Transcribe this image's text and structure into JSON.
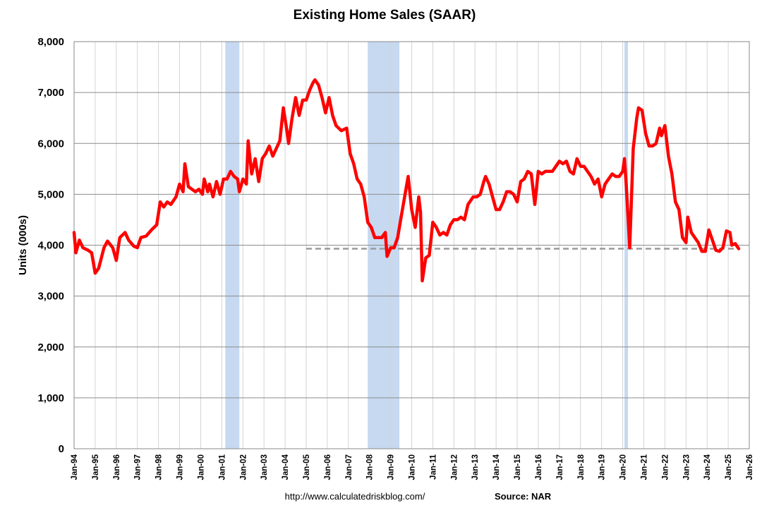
{
  "chart_data": {
    "type": "line",
    "title": "Existing Home Sales (SAAR)",
    "ylabel": "Units (000s)",
    "xlabel": "",
    "ylim": [
      0,
      8000
    ],
    "y_ticks": [
      0,
      1000,
      2000,
      3000,
      4000,
      5000,
      6000,
      7000,
      8000
    ],
    "y_tick_labels": [
      "0",
      "1,000",
      "2,000",
      "3,000",
      "4,000",
      "5,000",
      "6,000",
      "7,000",
      "8,000"
    ],
    "x_tick_labels": [
      "Jan-94",
      "Jan-95",
      "Jan-96",
      "Jan-97",
      "Jan-98",
      "Jan-99",
      "Jan-00",
      "Jan-01",
      "Jan-02",
      "Jan-03",
      "Jan-04",
      "Jan-05",
      "Jan-06",
      "Jan-07",
      "Jan-08",
      "Jan-09",
      "Jan-10",
      "Jan-11",
      "Jan-12",
      "Jan-13",
      "Jan-14",
      "Jan-15",
      "Jan-16",
      "Jan-17",
      "Jan-18",
      "Jan-19",
      "Jan-20",
      "Jan-21",
      "Jan-22",
      "Jan-23",
      "Jan-24",
      "Jan-25",
      "Jan-26"
    ],
    "grid": true,
    "recessions": [
      [
        "2001-03",
        "2001-11"
      ],
      [
        "2007-12",
        "2009-06"
      ],
      [
        "2020-02",
        "2020-04"
      ]
    ],
    "reference_line": {
      "value": 3930,
      "from": "2005-01",
      "to": "2025-07",
      "style": "dashed"
    },
    "series": [
      {
        "color": "#ff0000",
        "points": [
          [
            "1994-01",
            4250
          ],
          [
            "1994-02",
            3850
          ],
          [
            "1994-04",
            4100
          ],
          [
            "1994-06",
            3950
          ],
          [
            "1994-09",
            3900
          ],
          [
            "1994-11",
            3850
          ],
          [
            "1995-01",
            3450
          ],
          [
            "1995-03",
            3550
          ],
          [
            "1995-06",
            3950
          ],
          [
            "1995-08",
            4080
          ],
          [
            "1995-11",
            3950
          ],
          [
            "1996-01",
            3700
          ],
          [
            "1996-03",
            4150
          ],
          [
            "1996-06",
            4250
          ],
          [
            "1996-08",
            4100
          ],
          [
            "1996-11",
            3980
          ],
          [
            "1997-01",
            3950
          ],
          [
            "1997-03",
            4150
          ],
          [
            "1997-06",
            4180
          ],
          [
            "1997-09",
            4300
          ],
          [
            "1997-12",
            4400
          ],
          [
            "1998-02",
            4850
          ],
          [
            "1998-04",
            4750
          ],
          [
            "1998-06",
            4850
          ],
          [
            "1998-08",
            4800
          ],
          [
            "1998-11",
            4950
          ],
          [
            "1999-01",
            5200
          ],
          [
            "1999-03",
            5050
          ],
          [
            "1999-04",
            5600
          ],
          [
            "1999-06",
            5150
          ],
          [
            "1999-08",
            5100
          ],
          [
            "1999-10",
            5050
          ],
          [
            "1999-12",
            5100
          ],
          [
            "2000-02",
            5000
          ],
          [
            "2000-03",
            5300
          ],
          [
            "2000-05",
            5050
          ],
          [
            "2000-06",
            5200
          ],
          [
            "2000-08",
            4950
          ],
          [
            "2000-10",
            5250
          ],
          [
            "2000-12",
            5000
          ],
          [
            "2001-02",
            5300
          ],
          [
            "2001-04",
            5300
          ],
          [
            "2001-06",
            5450
          ],
          [
            "2001-08",
            5350
          ],
          [
            "2001-10",
            5300
          ],
          [
            "2001-11",
            5050
          ],
          [
            "2002-01",
            5300
          ],
          [
            "2002-03",
            5200
          ],
          [
            "2002-04",
            6050
          ],
          [
            "2002-06",
            5400
          ],
          [
            "2002-08",
            5700
          ],
          [
            "2002-10",
            5250
          ],
          [
            "2002-12",
            5700
          ],
          [
            "2003-02",
            5800
          ],
          [
            "2003-04",
            5950
          ],
          [
            "2003-06",
            5750
          ],
          [
            "2003-08",
            5900
          ],
          [
            "2003-10",
            6050
          ],
          [
            "2003-12",
            6700
          ],
          [
            "2004-02",
            6250
          ],
          [
            "2004-03",
            6000
          ],
          [
            "2004-05",
            6500
          ],
          [
            "2004-07",
            6900
          ],
          [
            "2004-09",
            6550
          ],
          [
            "2004-11",
            6850
          ],
          [
            "2005-01",
            6850
          ],
          [
            "2005-03",
            7050
          ],
          [
            "2005-05",
            7200
          ],
          [
            "2005-06",
            7250
          ],
          [
            "2005-08",
            7150
          ],
          [
            "2005-10",
            6900
          ],
          [
            "2005-12",
            6600
          ],
          [
            "2006-02",
            6900
          ],
          [
            "2006-04",
            6550
          ],
          [
            "2006-06",
            6350
          ],
          [
            "2006-09",
            6250
          ],
          [
            "2006-12",
            6300
          ],
          [
            "2007-02",
            5800
          ],
          [
            "2007-04",
            5600
          ],
          [
            "2007-06",
            5300
          ],
          [
            "2007-08",
            5200
          ],
          [
            "2007-10",
            4950
          ],
          [
            "2007-12",
            4450
          ],
          [
            "2008-02",
            4350
          ],
          [
            "2008-04",
            4150
          ],
          [
            "2008-06",
            4150
          ],
          [
            "2008-08",
            4150
          ],
          [
            "2008-10",
            4250
          ],
          [
            "2008-11",
            3780
          ],
          [
            "2009-01",
            3950
          ],
          [
            "2009-03",
            3950
          ],
          [
            "2009-05",
            4150
          ],
          [
            "2009-07",
            4550
          ],
          [
            "2009-09",
            4950
          ],
          [
            "2009-11",
            5350
          ],
          [
            "2010-01",
            4700
          ],
          [
            "2010-03",
            4350
          ],
          [
            "2010-05",
            4950
          ],
          [
            "2010-06",
            4650
          ],
          [
            "2010-07",
            3300
          ],
          [
            "2010-09",
            3750
          ],
          [
            "2010-11",
            3800
          ],
          [
            "2011-01",
            4450
          ],
          [
            "2011-03",
            4350
          ],
          [
            "2011-05",
            4200
          ],
          [
            "2011-07",
            4250
          ],
          [
            "2011-09",
            4200
          ],
          [
            "2011-11",
            4400
          ],
          [
            "2012-01",
            4500
          ],
          [
            "2012-03",
            4500
          ],
          [
            "2012-05",
            4550
          ],
          [
            "2012-07",
            4500
          ],
          [
            "2012-09",
            4800
          ],
          [
            "2012-12",
            4950
          ],
          [
            "2013-02",
            4950
          ],
          [
            "2013-04",
            5000
          ],
          [
            "2013-06",
            5250
          ],
          [
            "2013-07",
            5350
          ],
          [
            "2013-09",
            5200
          ],
          [
            "2013-11",
            4950
          ],
          [
            "2014-01",
            4700
          ],
          [
            "2014-03",
            4700
          ],
          [
            "2014-05",
            4850
          ],
          [
            "2014-07",
            5050
          ],
          [
            "2014-09",
            5050
          ],
          [
            "2014-11",
            5000
          ],
          [
            "2015-01",
            4850
          ],
          [
            "2015-03",
            5250
          ],
          [
            "2015-05",
            5300
          ],
          [
            "2015-07",
            5450
          ],
          [
            "2015-09",
            5400
          ],
          [
            "2015-11",
            4800
          ],
          [
            "2016-01",
            5450
          ],
          [
            "2016-03",
            5400
          ],
          [
            "2016-05",
            5450
          ],
          [
            "2016-07",
            5450
          ],
          [
            "2016-09",
            5450
          ],
          [
            "2016-11",
            5550
          ],
          [
            "2017-01",
            5650
          ],
          [
            "2017-03",
            5600
          ],
          [
            "2017-05",
            5650
          ],
          [
            "2017-07",
            5450
          ],
          [
            "2017-09",
            5400
          ],
          [
            "2017-11",
            5700
          ],
          [
            "2018-01",
            5550
          ],
          [
            "2018-03",
            5550
          ],
          [
            "2018-05",
            5450
          ],
          [
            "2018-07",
            5350
          ],
          [
            "2018-09",
            5200
          ],
          [
            "2018-11",
            5300
          ],
          [
            "2019-01",
            4950
          ],
          [
            "2019-03",
            5200
          ],
          [
            "2019-05",
            5300
          ],
          [
            "2019-07",
            5400
          ],
          [
            "2019-09",
            5350
          ],
          [
            "2019-11",
            5350
          ],
          [
            "2020-01",
            5450
          ],
          [
            "2020-02",
            5700
          ],
          [
            "2020-03",
            5200
          ],
          [
            "2020-05",
            3950
          ],
          [
            "2020-07",
            5900
          ],
          [
            "2020-09",
            6500
          ],
          [
            "2020-10",
            6700
          ],
          [
            "2020-12",
            6650
          ],
          [
            "2021-02",
            6200
          ],
          [
            "2021-04",
            5950
          ],
          [
            "2021-06",
            5950
          ],
          [
            "2021-08",
            6000
          ],
          [
            "2021-10",
            6300
          ],
          [
            "2021-11",
            6150
          ],
          [
            "2022-01",
            6350
          ],
          [
            "2022-03",
            5750
          ],
          [
            "2022-05",
            5400
          ],
          [
            "2022-07",
            4850
          ],
          [
            "2022-09",
            4700
          ],
          [
            "2022-11",
            4150
          ],
          [
            "2023-01",
            4050
          ],
          [
            "2023-02",
            4550
          ],
          [
            "2023-04",
            4250
          ],
          [
            "2023-06",
            4150
          ],
          [
            "2023-08",
            4050
          ],
          [
            "2023-10",
            3880
          ],
          [
            "2023-12",
            3880
          ],
          [
            "2024-02",
            4300
          ],
          [
            "2024-04",
            4100
          ],
          [
            "2024-06",
            3900
          ],
          [
            "2024-08",
            3880
          ],
          [
            "2024-10",
            3950
          ],
          [
            "2024-12",
            4280
          ],
          [
            "2025-02",
            4250
          ],
          [
            "2025-03",
            4000
          ],
          [
            "2025-05",
            4030
          ],
          [
            "2025-07",
            3930
          ]
        ]
      }
    ]
  },
  "footer": {
    "url": "http://www.calculatedriskblog.com/",
    "source": "Source: NAR"
  }
}
